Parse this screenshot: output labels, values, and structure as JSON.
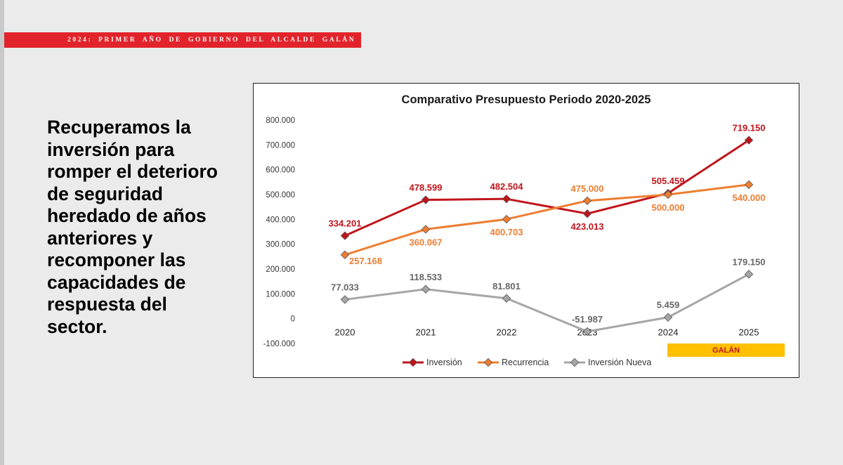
{
  "banner": {
    "text": "2024: PRIMER AÑO DE GOBIERNO DEL ALCALDE GALÁN"
  },
  "headline": {
    "text": "Recuperamos la inversión para romper el deterioro de seguridad heredado de años anteriores y recomponer las capacidades de respuesta del sector."
  },
  "chart_data": {
    "type": "line",
    "title": "Comparativo Presupuesto Periodo 2020-2025",
    "categories": [
      "2020",
      "2021",
      "2022",
      "2023",
      "2024",
      "2025"
    ],
    "ylim": [
      -100000,
      800000
    ],
    "yticks": [
      -100000,
      0,
      100000,
      200000,
      300000,
      400000,
      500000,
      600000,
      700000,
      800000
    ],
    "ytick_labels": [
      "-100.000",
      "0",
      "100.000",
      "200.000",
      "300.000",
      "400.000",
      "500.000",
      "600.000",
      "700.000",
      "800.000"
    ],
    "grid": false,
    "legend_position": "bottom",
    "series": [
      {
        "name": "Inversión",
        "color": "#c0141b",
        "values": [
          334201,
          478599,
          482504,
          423013,
          505459,
          719150
        ],
        "labels": [
          "334.201",
          "478.599",
          "482.504",
          "423.013",
          "505.459",
          "719.150"
        ],
        "label_placement": [
          "above",
          "above",
          "above",
          "below",
          "above",
          "above"
        ]
      },
      {
        "name": "Recurrencia",
        "color": "#ed7d31",
        "values": [
          257168,
          360067,
          400703,
          475000,
          500000,
          540000
        ],
        "labels": [
          "257.168",
          "360.067",
          "400.703",
          "475.000",
          "500.000",
          "540.000"
        ],
        "label_placement": [
          "below-right",
          "below",
          "below",
          "above",
          "below",
          "below"
        ]
      },
      {
        "name": "Inversión Nueva",
        "color": "#a6a6a6",
        "values": [
          77033,
          118533,
          81801,
          -51987,
          5459,
          179150
        ],
        "labels": [
          "77.033",
          "118.533",
          "81.801",
          "-51.987",
          "5.459",
          "179.150"
        ],
        "label_placement": [
          "above",
          "above",
          "above",
          "above",
          "above",
          "above"
        ]
      }
    ],
    "annotation": {
      "text": "GALÁN",
      "color": "#ffc000",
      "span": [
        "2024",
        "2025"
      ]
    }
  }
}
